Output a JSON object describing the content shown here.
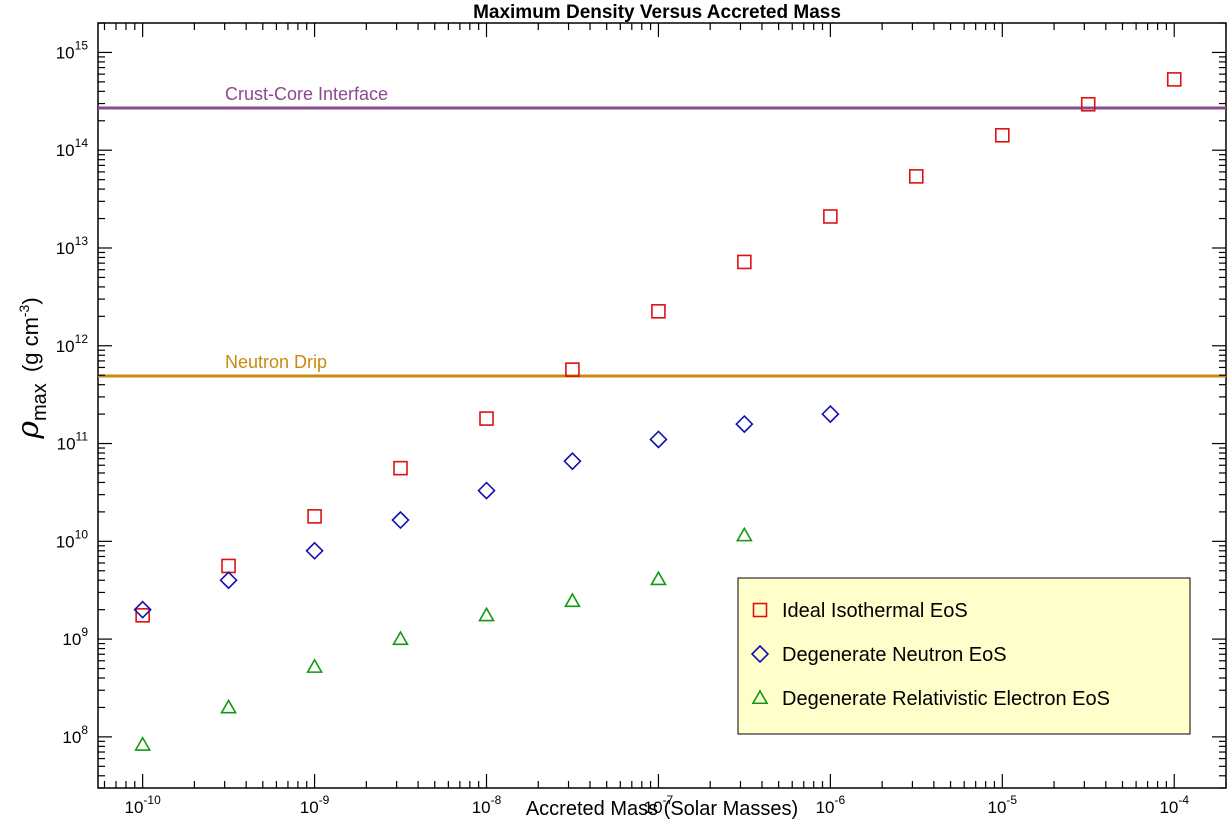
{
  "chart_data": {
    "type": "scatter",
    "title": "Maximum Density Versus Accreted Mass",
    "xlabel": "Accreted Mass (Solar Masses)",
    "ylabel": {
      "symbol": "ρ",
      "subscript": "max",
      "unit_prefix": "(g cm",
      "unit_exp": "-3",
      "unit_suffix": ")"
    },
    "x_scale": "log",
    "y_scale": "log",
    "xlim": [
      5.5e-11,
      0.0002
    ],
    "ylim": [
      30000000.0,
      2000000000000000.0
    ],
    "grid": false,
    "legend_position": "bottom-right",
    "x_ticks": [
      {
        "value": 1e-10,
        "base": "10",
        "exp": "-10"
      },
      {
        "value": 1e-09,
        "base": "10",
        "exp": "-9"
      },
      {
        "value": 1e-08,
        "base": "10",
        "exp": "-8"
      },
      {
        "value": 1e-07,
        "base": "10",
        "exp": "-7"
      },
      {
        "value": 1e-06,
        "base": "10",
        "exp": "-6"
      },
      {
        "value": 1e-05,
        "base": "10",
        "exp": "-5"
      },
      {
        "value": 0.0001,
        "base": "10",
        "exp": "-4"
      }
    ],
    "y_ticks": [
      {
        "value": 100000000.0,
        "base": "10",
        "exp": "8"
      },
      {
        "value": 1000000000.0,
        "base": "10",
        "exp": "9"
      },
      {
        "value": 10000000000.0,
        "base": "10",
        "exp": "10"
      },
      {
        "value": 100000000000.0,
        "base": "10",
        "exp": "11"
      },
      {
        "value": 1000000000000.0,
        "base": "10",
        "exp": "12"
      },
      {
        "value": 10000000000000.0,
        "base": "10",
        "exp": "13"
      },
      {
        "value": 100000000000000.0,
        "base": "10",
        "exp": "14"
      },
      {
        "value": 1000000000000000.0,
        "base": "10",
        "exp": "15"
      }
    ],
    "reference_lines": [
      {
        "name": "Crust-Core Interface",
        "y": 270000000000000.0,
        "color": "#8a4a90"
      },
      {
        "name": "Neutron Drip",
        "y": 490000000000.0,
        "color": "#c98a10"
      }
    ],
    "series": [
      {
        "name": "Ideal Isothermal EoS",
        "marker": "square",
        "color": "#dd1111",
        "points": [
          [
            1e-10,
            1750000000.0
          ],
          [
            3.16e-10,
            5600000000.0
          ],
          [
            1e-09,
            18000000000.0
          ],
          [
            3.16e-09,
            56000000000.0
          ],
          [
            1e-08,
            180000000000.0
          ],
          [
            3.16e-08,
            570000000000.0
          ],
          [
            1e-07,
            2250000000000.0
          ],
          [
            3.16e-07,
            7200000000000.0
          ],
          [
            1e-06,
            21000000000000.0
          ],
          [
            3.16e-06,
            54000000000000.0
          ],
          [
            1e-05,
            142000000000000.0
          ],
          [
            3.16e-05,
            295000000000000.0
          ],
          [
            0.0001,
            530000000000000.0
          ]
        ]
      },
      {
        "name": "Degenerate Neutron EoS",
        "marker": "diamond",
        "color": "#1111aa",
        "points": [
          [
            1e-10,
            2000000000.0
          ],
          [
            3.16e-10,
            4000000000.0
          ],
          [
            1e-09,
            8000000000.0
          ],
          [
            3.16e-09,
            16500000000.0
          ],
          [
            1e-08,
            33000000000.0
          ],
          [
            3.16e-08,
            66000000000.0
          ],
          [
            1e-07,
            110000000000.0
          ],
          [
            3.16e-07,
            158000000000.0
          ],
          [
            1e-06,
            200000000000.0
          ]
        ]
      },
      {
        "name": "Degenerate Relativistic Electron EoS",
        "marker": "triangle",
        "color": "#119911",
        "points": [
          [
            1e-10,
            83000000.0
          ],
          [
            3.16e-10,
            200000000.0
          ],
          [
            1e-09,
            520000000.0
          ],
          [
            3.16e-09,
            1000000000.0
          ],
          [
            1e-08,
            1750000000.0
          ],
          [
            3.16e-08,
            2450000000.0
          ],
          [
            1e-07,
            4100000000.0
          ],
          [
            3.16e-07,
            11500000000.0
          ]
        ]
      }
    ]
  }
}
